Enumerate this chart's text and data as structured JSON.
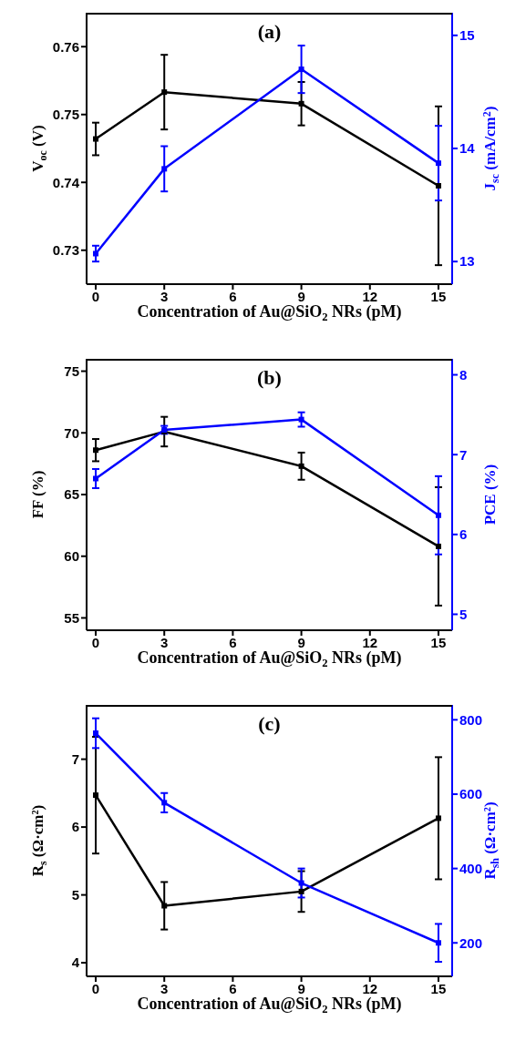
{
  "chart_data": [
    {
      "type": "line",
      "title": "(a)",
      "xlabel": "Concentration of Au@SiO$_{2}$ NRs (pM)",
      "ylabel": "V$_{oc}$ (V)",
      "y2label": "J$_{sc}$ (mA/cm$^{2}$)",
      "x": [
        0,
        3,
        9,
        15
      ],
      "xlim": [
        -0.4,
        15.6
      ],
      "xticks": [
        0,
        3,
        6,
        9,
        12,
        15
      ],
      "ylim": [
        0.725,
        0.765
      ],
      "yticks": [
        0.73,
        0.74,
        0.75,
        0.76
      ],
      "y2lim": [
        12.8,
        15.2
      ],
      "y2ticks": [
        13,
        14,
        15
      ],
      "marker": "square",
      "series": [
        {
          "color": "#000000",
          "values": [
            0.7464,
            0.7533,
            0.7516,
            0.7395
          ],
          "errors": [
            0.0024,
            0.0055,
            0.0032,
            0.0117
          ]
        },
        {
          "color": "#0000ff",
          "axis": "y2",
          "values": [
            13.07,
            13.82,
            14.7,
            13.87
          ],
          "errors": [
            0.07,
            0.2,
            0.21,
            0.33
          ]
        }
      ]
    },
    {
      "type": "line",
      "title": "(b)",
      "xlabel": "Concentration of Au@SiO$_{2}$ NRs (pM)",
      "ylabel": "FF (%)",
      "y2label": "PCE (%)",
      "x": [
        0,
        3,
        9,
        15
      ],
      "xlim": [
        -0.4,
        15.6
      ],
      "xticks": [
        0,
        3,
        6,
        9,
        12,
        15
      ],
      "ylim": [
        54,
        76
      ],
      "yticks": [
        55,
        60,
        65,
        70,
        75
      ],
      "y2lim": [
        4.8,
        8.2
      ],
      "y2ticks": [
        5,
        6,
        7,
        8
      ],
      "marker": "square",
      "series": [
        {
          "color": "#000000",
          "values": [
            68.6,
            70.1,
            67.3,
            60.8
          ],
          "errors": [
            0.9,
            1.2,
            1.1,
            4.8
          ]
        },
        {
          "color": "#0000ff",
          "axis": "y2",
          "values": [
            6.7,
            7.31,
            7.44,
            6.24
          ],
          "errors": [
            0.12,
            0.05,
            0.09,
            0.49
          ]
        }
      ]
    },
    {
      "type": "line",
      "title": "(c)",
      "xlabel": "Concentration of Au@SiO$_{2}$ NRs (pM)",
      "ylabel": "R$_{s}$ (Ω·cm²)",
      "y2label": "R$_{sh}$ (Ω·cm²)",
      "x": [
        0,
        3,
        9,
        15
      ],
      "xlim": [
        -0.4,
        15.6
      ],
      "xticks": [
        0,
        3,
        6,
        9,
        12,
        15
      ],
      "ylim": [
        3.8,
        7.8
      ],
      "yticks": [
        4,
        5,
        6,
        7
      ],
      "y2lim": [
        110,
        840
      ],
      "y2ticks": [
        200,
        400,
        600,
        800
      ],
      "marker": "square",
      "series": [
        {
          "color": "#000000",
          "values": [
            6.47,
            4.84,
            5.05,
            6.13
          ],
          "errors": [
            0.86,
            0.35,
            0.3,
            0.9
          ]
        },
        {
          "color": "#0000ff",
          "axis": "y2",
          "values": [
            764,
            577,
            361,
            200
          ],
          "errors": [
            40,
            26,
            39,
            51
          ]
        }
      ]
    }
  ]
}
